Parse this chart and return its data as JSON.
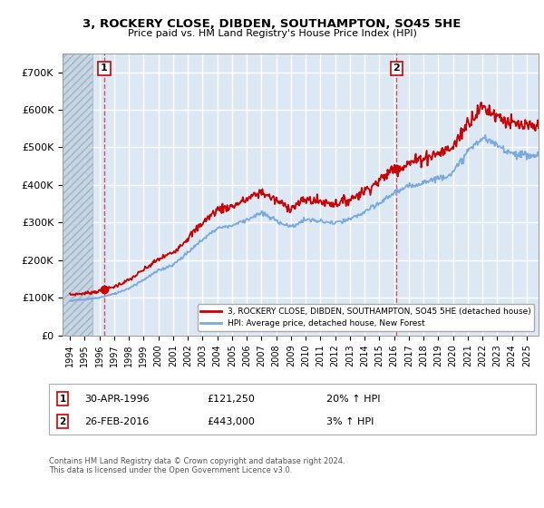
{
  "title": "3, ROCKERY CLOSE, DIBDEN, SOUTHAMPTON, SO45 5HE",
  "subtitle": "Price paid vs. HM Land Registry's House Price Index (HPI)",
  "background_color": "#dce9f5",
  "plot_bg_color": "#dce9f5",
  "hatch_region_end_year": 1995.5,
  "ylim": [
    0,
    750000
  ],
  "xlim_start": 1993.5,
  "xlim_end": 2025.8,
  "yticks": [
    0,
    100000,
    200000,
    300000,
    400000,
    500000,
    600000,
    700000
  ],
  "ytick_labels": [
    "£0",
    "£100K",
    "£200K",
    "£300K",
    "£400K",
    "£500K",
    "£600K",
    "£700K"
  ],
  "xticks": [
    1994,
    1995,
    1996,
    1997,
    1998,
    1999,
    2000,
    2001,
    2002,
    2003,
    2004,
    2005,
    2006,
    2007,
    2008,
    2009,
    2010,
    2011,
    2012,
    2013,
    2014,
    2015,
    2016,
    2017,
    2018,
    2019,
    2020,
    2021,
    2022,
    2023,
    2024,
    2025
  ],
  "sale1_year": 1996.33,
  "sale1_price": 121250,
  "sale1_label": "1",
  "sale2_year": 2016.17,
  "sale2_price": 443000,
  "sale2_label": "2",
  "legend_line1": "3, ROCKERY CLOSE, DIBDEN, SOUTHAMPTON, SO45 5HE (detached house)",
  "legend_line2": "HPI: Average price, detached house, New Forest",
  "footer": "Contains HM Land Registry data © Crown copyright and database right 2024.\nThis data is licensed under the Open Government Licence v3.0.",
  "line_color_price": "#cc0000",
  "line_color_hpi": "#7aaadd",
  "grid_color": "#ffffff",
  "ann1_date": "30-APR-1996",
  "ann1_price": "£121,250",
  "ann1_hpi": "20% ↑ HPI",
  "ann2_date": "26-FEB-2016",
  "ann2_price": "£443,000",
  "ann2_hpi": "3% ↑ HPI"
}
